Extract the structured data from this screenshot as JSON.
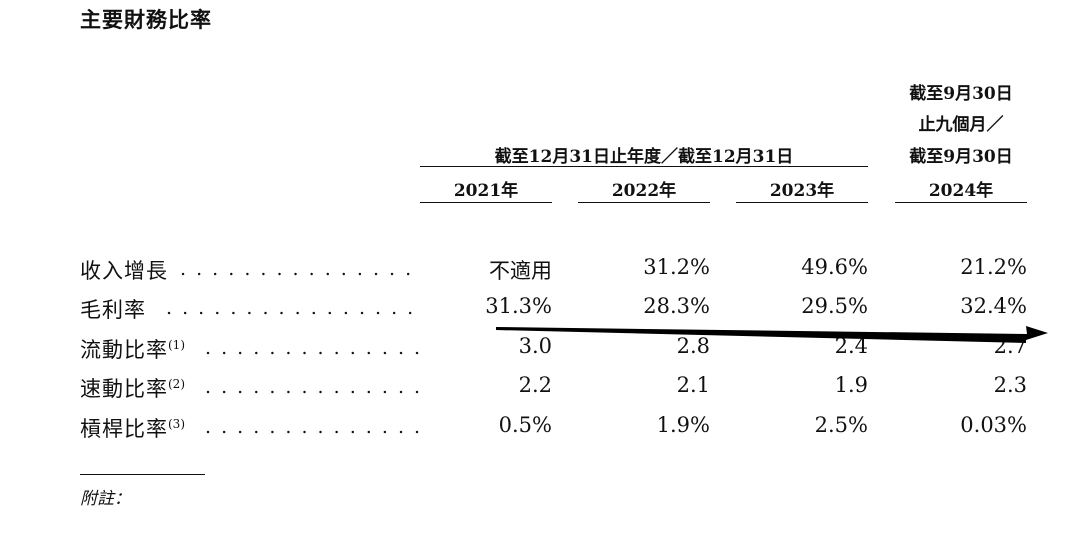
{
  "title": "主要財務比率",
  "header": {
    "period_group_label": "截至12月31日止年度／截至12月31日",
    "interim_label_line1": "截至9月30日",
    "interim_label_line2": "止九個月／",
    "interim_label_line3": "截至9月30日",
    "years": [
      "2021年",
      "2022年",
      "2023年",
      "2024年"
    ]
  },
  "rows": [
    {
      "label": "收入增長",
      "note": "",
      "dots": ". . . . . . . . . . . . . . .",
      "values": [
        "不適用",
        "31.2%",
        "49.6%",
        "21.2%"
      ]
    },
    {
      "label": "毛利率",
      "note": "",
      "dots": ". . . . . . . . . . . . . . . .",
      "values": [
        "31.3%",
        "28.3%",
        "29.5%",
        "32.4%"
      ]
    },
    {
      "label": "流動比率",
      "note": "(1)",
      "dots": ". . . . . . . . . . . . . .",
      "values": [
        "3.0",
        "2.8",
        "2.4",
        "2.7"
      ]
    },
    {
      "label": "速動比率",
      "note": "(2)",
      "dots": ". . . . . . . . . . . . . .",
      "values": [
        "2.2",
        "2.1",
        "1.9",
        "2.3"
      ]
    },
    {
      "label": "槓桿比率",
      "note": "(3)",
      "dots": ". . . . . . . . . . . . . .",
      "values": [
        "0.5%",
        "1.9%",
        "2.5%",
        "0.03%"
      ]
    }
  ],
  "footnote_label": "附註：",
  "annotation": {
    "arrow_color": "#000000"
  }
}
